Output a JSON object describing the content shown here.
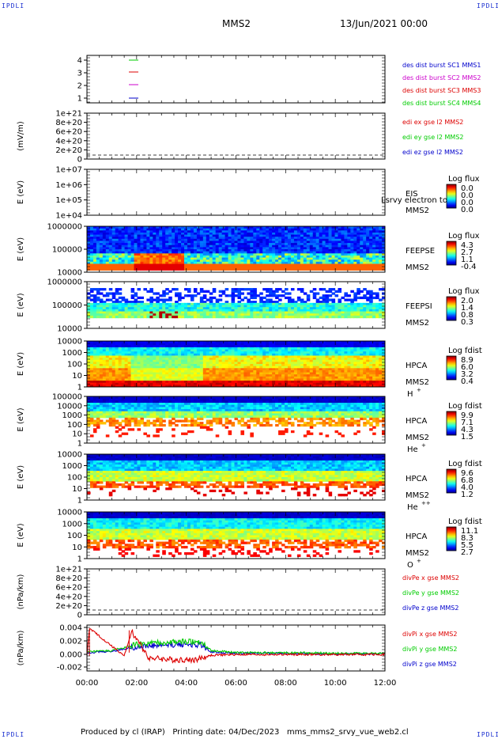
{
  "header": {
    "corner_tl": "IPDLI",
    "corner_tr": "IPDLI",
    "corner_bl": "IPDLI",
    "corner_br": "IPDLI",
    "spacecraft": "MMS2",
    "datetime": "13/Jun/2021 00:00"
  },
  "footer": {
    "text": "Produced by cl (IRAP)   Printing date: 04/Dec/2023   mms_mms2_srvy_vue_web2.cl"
  },
  "colors": {
    "c1": "#00cc00",
    "c2": "#dd0000",
    "c3": "#cc00cc",
    "c4": "#0000cc",
    "axis": "#000000"
  },
  "panels": [
    {
      "id": "burst",
      "ylabel": "",
      "yticks": [
        "4",
        "3",
        "2",
        "1"
      ],
      "right_labels": [
        {
          "text": "des dist burst SC1 MMS1",
          "color": "#0000cc"
        },
        {
          "text": "des dist burst SC2 MMS2",
          "color": "#cc00cc"
        },
        {
          "text": "des dist burst SC3 MMS3",
          "color": "#dd0000"
        },
        {
          "text": "des dist burst SC4 MMS4",
          "color": "#00cc00"
        }
      ]
    },
    {
      "id": "edi",
      "ylabel": "(mV/m)",
      "yticks": [
        "1e+21",
        "8e+20",
        "6e+20",
        "4e+20",
        "2e+20",
        "0"
      ],
      "right_labels": [
        {
          "text": "edi ex gse l2 MMS2",
          "color": "#dd0000"
        },
        {
          "text": "edi ey gse l2 MMS2",
          "color": "#00cc00"
        },
        {
          "text": "edi ez gse l2 MMS2",
          "color": "#0000cc"
        }
      ]
    },
    {
      "id": "eis",
      "ylabel": "E (eV)",
      "yticks": [
        "1e+07",
        "1e+06",
        "1e+05",
        "1e+04"
      ],
      "inst": [
        "EIS",
        "MMS2"
      ],
      "overlay": "Lsrvy electron to",
      "cbar_title": "Log flux",
      "cbar_ticks": [
        "0.0",
        "0.0",
        "0.0",
        "0.0"
      ]
    },
    {
      "id": "feepse",
      "ylabel": "E (eV)",
      "yticks": [
        "1000000",
        "100000",
        "10000"
      ],
      "inst": [
        "FEEPSE",
        "MMS2"
      ],
      "cbar_title": "Log flux",
      "cbar_ticks": [
        "4.3",
        "2.7",
        "1.1",
        "-0.4"
      ]
    },
    {
      "id": "feepsi",
      "ylabel": "E (eV)",
      "yticks": [
        "1000000",
        "100000",
        "10000"
      ],
      "inst": [
        "FEEPSI",
        "MMS2"
      ],
      "cbar_title": "Log flux",
      "cbar_ticks": [
        "2.0",
        "1.4",
        "0.8",
        "0.3"
      ]
    },
    {
      "id": "hpca_h",
      "ylabel": "E (eV)",
      "yticks": [
        "10000",
        "1000",
        "100",
        "10",
        "1"
      ],
      "inst": [
        "HPCA",
        "MMS2"
      ],
      "species": "H",
      "species_sup": "+",
      "cbar_title": "Log fdist",
      "cbar_ticks": [
        "8.9",
        "6.0",
        "3.2",
        "0.4"
      ]
    },
    {
      "id": "hpca_he1",
      "ylabel": "E (eV)",
      "yticks": [
        "100000",
        "10000",
        "1000",
        "100",
        "10",
        "1"
      ],
      "inst": [
        "HPCA",
        "MMS2"
      ],
      "species": "He",
      "species_sup": "+",
      "cbar_title": "Log fdist",
      "cbar_ticks": [
        "9.9",
        "7.1",
        "4.3",
        "1.5"
      ]
    },
    {
      "id": "hpca_he2",
      "ylabel": "E (eV)",
      "yticks": [
        "10000",
        "1000",
        "100",
        "10",
        "1"
      ],
      "inst": [
        "HPCA",
        "MMS2"
      ],
      "species": "He",
      "species_sup": "++",
      "cbar_title": "Log fdist",
      "cbar_ticks": [
        "9.6",
        "6.8",
        "4.0",
        "1.2"
      ]
    },
    {
      "id": "hpca_o",
      "ylabel": "E (eV)",
      "yticks": [
        "10000",
        "1000",
        "100",
        "10",
        "1"
      ],
      "inst": [
        "HPCA",
        "MMS2"
      ],
      "species": "O",
      "species_sup": "+",
      "cbar_title": "Log fdist",
      "cbar_ticks": [
        "11.1",
        "8.3",
        "5.5",
        "2.7"
      ]
    },
    {
      "id": "divpe",
      "ylabel": "(nPa/km)",
      "yticks": [
        "1e+21",
        "8e+20",
        "6e+20",
        "4e+20",
        "2e+20",
        "0"
      ],
      "right_labels": [
        {
          "text": "divPe x gse MMS2",
          "color": "#dd0000"
        },
        {
          "text": "divPe y gse MMS2",
          "color": "#00cc00"
        },
        {
          "text": "divPe z gse MMS2",
          "color": "#0000cc"
        }
      ]
    },
    {
      "id": "divpi",
      "ylabel": "(nPa/km)",
      "yticks": [
        "0.004",
        "0.002",
        "0.000",
        "-0.002"
      ],
      "right_labels": [
        {
          "text": "divPi x gse MMS2",
          "color": "#dd0000"
        },
        {
          "text": "divPi y gse MMS2",
          "color": "#00cc00"
        },
        {
          "text": "divPi z gse MMS2",
          "color": "#0000cc"
        }
      ]
    }
  ],
  "chart_data": {
    "type": "line",
    "title": "MMS2",
    "xlabel": "",
    "x_ticks": [
      "00:00",
      "02:00",
      "04:00",
      "06:00",
      "08:00",
      "10:00",
      "12:00"
    ],
    "x_range_hours": [
      0,
      12
    ],
    "series": [
      {
        "name": "divPi x gse MMS2",
        "x": [
          0,
          0.1,
          1.5,
          1.8,
          2.5,
          3.5,
          4.4,
          5,
          6,
          8,
          10,
          12
        ],
        "y": [
          -0.0002,
          0.004,
          -0.0002,
          0.0035,
          -0.0005,
          -0.0008,
          -0.0008,
          -0.0001,
          0.0,
          0.0,
          0.0,
          0.0
        ]
      },
      {
        "name": "divPi y gse MMS2",
        "x": [
          0,
          1,
          2,
          3,
          4,
          4.6,
          5,
          6,
          8,
          10,
          12
        ],
        "y": [
          0.0004,
          0.0006,
          0.0015,
          0.0018,
          0.002,
          0.002,
          0.0006,
          0.0003,
          0.0003,
          0.0002,
          0.0002
        ]
      },
      {
        "name": "divPi z gse MMS2",
        "x": [
          0,
          1,
          2,
          3,
          4,
          4.6,
          5,
          6,
          8,
          10,
          12
        ],
        "y": [
          0.0003,
          0.0005,
          0.0012,
          0.0014,
          0.0016,
          0.0015,
          0.0004,
          0.0002,
          0.0002,
          0.0001,
          0.0001
        ]
      }
    ],
    "ylim": [
      -0.0025,
      0.0045
    ]
  }
}
